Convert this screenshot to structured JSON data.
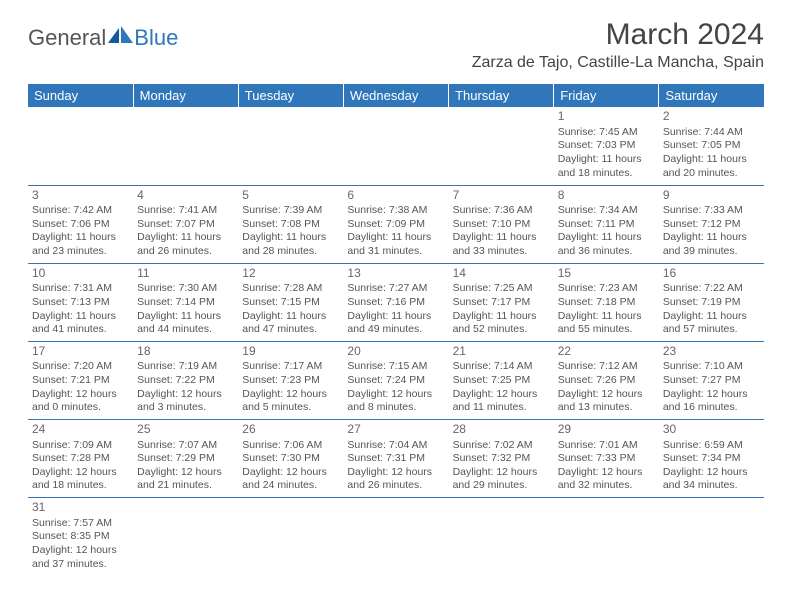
{
  "logo": {
    "part1": "General",
    "part2": "Blue"
  },
  "title": "March 2024",
  "location": "Zarza de Tajo, Castille-La Mancha, Spain",
  "colors": {
    "header_bg": "#2f76ba",
    "header_text": "#ffffff",
    "border": "#2f76ba",
    "text": "#555555"
  },
  "weekdays": [
    "Sunday",
    "Monday",
    "Tuesday",
    "Wednesday",
    "Thursday",
    "Friday",
    "Saturday"
  ],
  "weeks": [
    [
      null,
      null,
      null,
      null,
      null,
      {
        "n": "1",
        "sunrise": "Sunrise: 7:45 AM",
        "sunset": "Sunset: 7:03 PM",
        "day1": "Daylight: 11 hours",
        "day2": "and 18 minutes."
      },
      {
        "n": "2",
        "sunrise": "Sunrise: 7:44 AM",
        "sunset": "Sunset: 7:05 PM",
        "day1": "Daylight: 11 hours",
        "day2": "and 20 minutes."
      }
    ],
    [
      {
        "n": "3",
        "sunrise": "Sunrise: 7:42 AM",
        "sunset": "Sunset: 7:06 PM",
        "day1": "Daylight: 11 hours",
        "day2": "and 23 minutes."
      },
      {
        "n": "4",
        "sunrise": "Sunrise: 7:41 AM",
        "sunset": "Sunset: 7:07 PM",
        "day1": "Daylight: 11 hours",
        "day2": "and 26 minutes."
      },
      {
        "n": "5",
        "sunrise": "Sunrise: 7:39 AM",
        "sunset": "Sunset: 7:08 PM",
        "day1": "Daylight: 11 hours",
        "day2": "and 28 minutes."
      },
      {
        "n": "6",
        "sunrise": "Sunrise: 7:38 AM",
        "sunset": "Sunset: 7:09 PM",
        "day1": "Daylight: 11 hours",
        "day2": "and 31 minutes."
      },
      {
        "n": "7",
        "sunrise": "Sunrise: 7:36 AM",
        "sunset": "Sunset: 7:10 PM",
        "day1": "Daylight: 11 hours",
        "day2": "and 33 minutes."
      },
      {
        "n": "8",
        "sunrise": "Sunrise: 7:34 AM",
        "sunset": "Sunset: 7:11 PM",
        "day1": "Daylight: 11 hours",
        "day2": "and 36 minutes."
      },
      {
        "n": "9",
        "sunrise": "Sunrise: 7:33 AM",
        "sunset": "Sunset: 7:12 PM",
        "day1": "Daylight: 11 hours",
        "day2": "and 39 minutes."
      }
    ],
    [
      {
        "n": "10",
        "sunrise": "Sunrise: 7:31 AM",
        "sunset": "Sunset: 7:13 PM",
        "day1": "Daylight: 11 hours",
        "day2": "and 41 minutes."
      },
      {
        "n": "11",
        "sunrise": "Sunrise: 7:30 AM",
        "sunset": "Sunset: 7:14 PM",
        "day1": "Daylight: 11 hours",
        "day2": "and 44 minutes."
      },
      {
        "n": "12",
        "sunrise": "Sunrise: 7:28 AM",
        "sunset": "Sunset: 7:15 PM",
        "day1": "Daylight: 11 hours",
        "day2": "and 47 minutes."
      },
      {
        "n": "13",
        "sunrise": "Sunrise: 7:27 AM",
        "sunset": "Sunset: 7:16 PM",
        "day1": "Daylight: 11 hours",
        "day2": "and 49 minutes."
      },
      {
        "n": "14",
        "sunrise": "Sunrise: 7:25 AM",
        "sunset": "Sunset: 7:17 PM",
        "day1": "Daylight: 11 hours",
        "day2": "and 52 minutes."
      },
      {
        "n": "15",
        "sunrise": "Sunrise: 7:23 AM",
        "sunset": "Sunset: 7:18 PM",
        "day1": "Daylight: 11 hours",
        "day2": "and 55 minutes."
      },
      {
        "n": "16",
        "sunrise": "Sunrise: 7:22 AM",
        "sunset": "Sunset: 7:19 PM",
        "day1": "Daylight: 11 hours",
        "day2": "and 57 minutes."
      }
    ],
    [
      {
        "n": "17",
        "sunrise": "Sunrise: 7:20 AM",
        "sunset": "Sunset: 7:21 PM",
        "day1": "Daylight: 12 hours",
        "day2": "and 0 minutes."
      },
      {
        "n": "18",
        "sunrise": "Sunrise: 7:19 AM",
        "sunset": "Sunset: 7:22 PM",
        "day1": "Daylight: 12 hours",
        "day2": "and 3 minutes."
      },
      {
        "n": "19",
        "sunrise": "Sunrise: 7:17 AM",
        "sunset": "Sunset: 7:23 PM",
        "day1": "Daylight: 12 hours",
        "day2": "and 5 minutes."
      },
      {
        "n": "20",
        "sunrise": "Sunrise: 7:15 AM",
        "sunset": "Sunset: 7:24 PM",
        "day1": "Daylight: 12 hours",
        "day2": "and 8 minutes."
      },
      {
        "n": "21",
        "sunrise": "Sunrise: 7:14 AM",
        "sunset": "Sunset: 7:25 PM",
        "day1": "Daylight: 12 hours",
        "day2": "and 11 minutes."
      },
      {
        "n": "22",
        "sunrise": "Sunrise: 7:12 AM",
        "sunset": "Sunset: 7:26 PM",
        "day1": "Daylight: 12 hours",
        "day2": "and 13 minutes."
      },
      {
        "n": "23",
        "sunrise": "Sunrise: 7:10 AM",
        "sunset": "Sunset: 7:27 PM",
        "day1": "Daylight: 12 hours",
        "day2": "and 16 minutes."
      }
    ],
    [
      {
        "n": "24",
        "sunrise": "Sunrise: 7:09 AM",
        "sunset": "Sunset: 7:28 PM",
        "day1": "Daylight: 12 hours",
        "day2": "and 18 minutes."
      },
      {
        "n": "25",
        "sunrise": "Sunrise: 7:07 AM",
        "sunset": "Sunset: 7:29 PM",
        "day1": "Daylight: 12 hours",
        "day2": "and 21 minutes."
      },
      {
        "n": "26",
        "sunrise": "Sunrise: 7:06 AM",
        "sunset": "Sunset: 7:30 PM",
        "day1": "Daylight: 12 hours",
        "day2": "and 24 minutes."
      },
      {
        "n": "27",
        "sunrise": "Sunrise: 7:04 AM",
        "sunset": "Sunset: 7:31 PM",
        "day1": "Daylight: 12 hours",
        "day2": "and 26 minutes."
      },
      {
        "n": "28",
        "sunrise": "Sunrise: 7:02 AM",
        "sunset": "Sunset: 7:32 PM",
        "day1": "Daylight: 12 hours",
        "day2": "and 29 minutes."
      },
      {
        "n": "29",
        "sunrise": "Sunrise: 7:01 AM",
        "sunset": "Sunset: 7:33 PM",
        "day1": "Daylight: 12 hours",
        "day2": "and 32 minutes."
      },
      {
        "n": "30",
        "sunrise": "Sunrise: 6:59 AM",
        "sunset": "Sunset: 7:34 PM",
        "day1": "Daylight: 12 hours",
        "day2": "and 34 minutes."
      }
    ],
    [
      {
        "n": "31",
        "sunrise": "Sunrise: 7:57 AM",
        "sunset": "Sunset: 8:35 PM",
        "day1": "Daylight: 12 hours",
        "day2": "and 37 minutes."
      },
      null,
      null,
      null,
      null,
      null,
      null
    ]
  ]
}
